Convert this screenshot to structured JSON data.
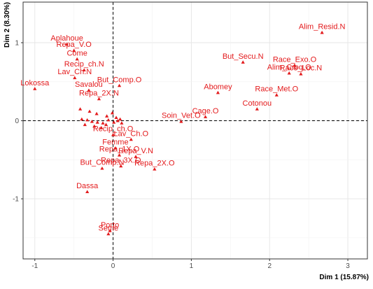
{
  "chart_data": {
    "type": "scatter",
    "title": "",
    "xlabel": "Dim 1 (15.87%)",
    "ylabel": "Dim 2 (8.30%)",
    "xlim": [
      -1.15,
      3.25
    ],
    "ylim": [
      -1.77,
      1.52
    ],
    "xticks": [
      -1,
      0,
      1,
      2,
      3
    ],
    "yticks": [
      -1,
      0,
      1
    ],
    "grid": true,
    "reference_lines": [
      {
        "axis": "x",
        "value": 0
      },
      {
        "axis": "y",
        "value": 0
      }
    ],
    "marker": "triangle",
    "color": "#e31a1c",
    "labeled_points": [
      {
        "label": "Alim_Resid.N",
        "x": 2.67,
        "y": 1.13
      },
      {
        "label": "Aplahoue",
        "x": -0.59,
        "y": 0.98
      },
      {
        "label": "Repa_V.O",
        "x": -0.5,
        "y": 0.9
      },
      {
        "label": "Come",
        "x": -0.46,
        "y": 0.79
      },
      {
        "label": "Recip_ch.N",
        "x": -0.37,
        "y": 0.65
      },
      {
        "label": "But_Secu.N",
        "x": 1.66,
        "y": 0.75
      },
      {
        "label": "Race_Exo.O",
        "x": 2.32,
        "y": 0.71
      },
      {
        "label": "Race_Loc.N",
        "x": 2.4,
        "y": 0.6
      },
      {
        "label": "Alim_Croq.O",
        "x": 2.25,
        "y": 0.61
      },
      {
        "label": "Lav_Ch.N",
        "x": -0.49,
        "y": 0.55
      },
      {
        "label": "But_Comp.O",
        "x": 0.08,
        "y": 0.45
      },
      {
        "label": "Savalou",
        "x": -0.31,
        "y": 0.39
      },
      {
        "label": "Race_Met.O",
        "x": 2.09,
        "y": 0.33
      },
      {
        "label": "Lokossa",
        "x": -1.0,
        "y": 0.41
      },
      {
        "label": "Abomey",
        "x": 1.34,
        "y": 0.36
      },
      {
        "label": "Cotonou",
        "x": 1.84,
        "y": 0.15
      },
      {
        "label": "Repa_2X.N",
        "x": -0.18,
        "y": 0.28
      },
      {
        "label": "Cage.O",
        "x": 1.18,
        "y": 0.05
      },
      {
        "label": "Soin_Vet.O",
        "x": 0.87,
        "y": -0.01
      },
      {
        "label": "Recip_ch.O",
        "x": 0.0,
        "y": -0.18
      },
      {
        "label": "Lav_Ch.O",
        "x": 0.23,
        "y": -0.24
      },
      {
        "label": "Femme",
        "x": 0.03,
        "y": -0.35
      },
      {
        "label": "Repa_V.N",
        "x": 0.29,
        "y": -0.46
      },
      {
        "label": "Repa_1X.O",
        "x": 0.08,
        "y": -0.44
      },
      {
        "label": "Repa_3X.O",
        "x": 0.1,
        "y": -0.58
      },
      {
        "label": "Repa_2X.O",
        "x": 0.53,
        "y": -0.62
      },
      {
        "label": "But_Comp.N",
        "x": -0.14,
        "y": -0.61
      },
      {
        "label": "Dassa",
        "x": -0.33,
        "y": -0.91
      },
      {
        "label": "Porto",
        "x": -0.04,
        "y": -1.41
      },
      {
        "label": "Seme",
        "x": -0.06,
        "y": -1.45
      }
    ],
    "unlabeled_points": [
      {
        "x": -0.42,
        "y": 0.15
      },
      {
        "x": -0.3,
        "y": 0.12
      },
      {
        "x": -0.21,
        "y": 0.09
      },
      {
        "x": -0.08,
        "y": 0.06
      },
      {
        "x": -0.01,
        "y": 0.1
      },
      {
        "x": 0.04,
        "y": 0.04
      },
      {
        "x": -0.4,
        "y": 0.02
      },
      {
        "x": -0.33,
        "y": 0.01
      },
      {
        "x": -0.27,
        "y": -0.01
      },
      {
        "x": -0.2,
        "y": -0.02
      },
      {
        "x": -0.13,
        "y": -0.03
      },
      {
        "x": -0.06,
        "y": 0.01
      },
      {
        "x": 0.01,
        "y": -0.02
      },
      {
        "x": 0.06,
        "y": 0.0
      },
      {
        "x": 0.11,
        "y": -0.03
      },
      {
        "x": -0.36,
        "y": -0.05
      },
      {
        "x": -0.24,
        "y": -0.07
      },
      {
        "x": -0.15,
        "y": -0.09
      },
      {
        "x": -0.09,
        "y": -0.05
      },
      {
        "x": 0.09,
        "y": 0.02
      }
    ]
  }
}
